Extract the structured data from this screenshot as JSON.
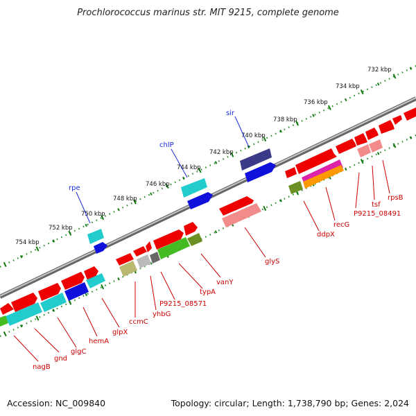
{
  "title": "Prochlorococcus marinus str. MIT 9215, complete genome",
  "footer": {
    "accession": "Accession: NC_009840",
    "stats": "Topology: circular; Length: 1,738,790 bp; Genes: 2,024"
  },
  "ticks": [
    "732 kbp",
    "734 kbp",
    "736 kbp",
    "738 kbp",
    "740 kbp",
    "742 kbp",
    "744 kbp",
    "746 kbp",
    "748 kbp",
    "750 kbp",
    "752 kbp",
    "754 kbp"
  ],
  "labels_top": [
    "sir",
    "chlP",
    "rpe"
  ],
  "labels_bottom": [
    "rpsB",
    "tsf",
    "P9215_08491",
    "recG",
    "ddpX",
    "glyS",
    "vanY",
    "typA",
    "P9215_08571",
    "yhbG",
    "ccmC",
    "glpX",
    "hemA",
    "glgC",
    "gnd",
    "nagB"
  ],
  "colors": {
    "forward": "#ee0000",
    "reverse_light": "#f28c8c",
    "rna_cyan": "#22cccc",
    "blue": "#1010dd",
    "navy": "#3a3a88",
    "green": "#44bb22",
    "olive": "#6b8f22",
    "khaki": "#b8b870",
    "gray": "#bbbbbb",
    "magenta": "#dd22aa",
    "orange": "#ff9900",
    "label_red": "#cc0000",
    "label_blue": "#1a2ad6",
    "axis": "#888888",
    "tick_dot": "#228822"
  }
}
